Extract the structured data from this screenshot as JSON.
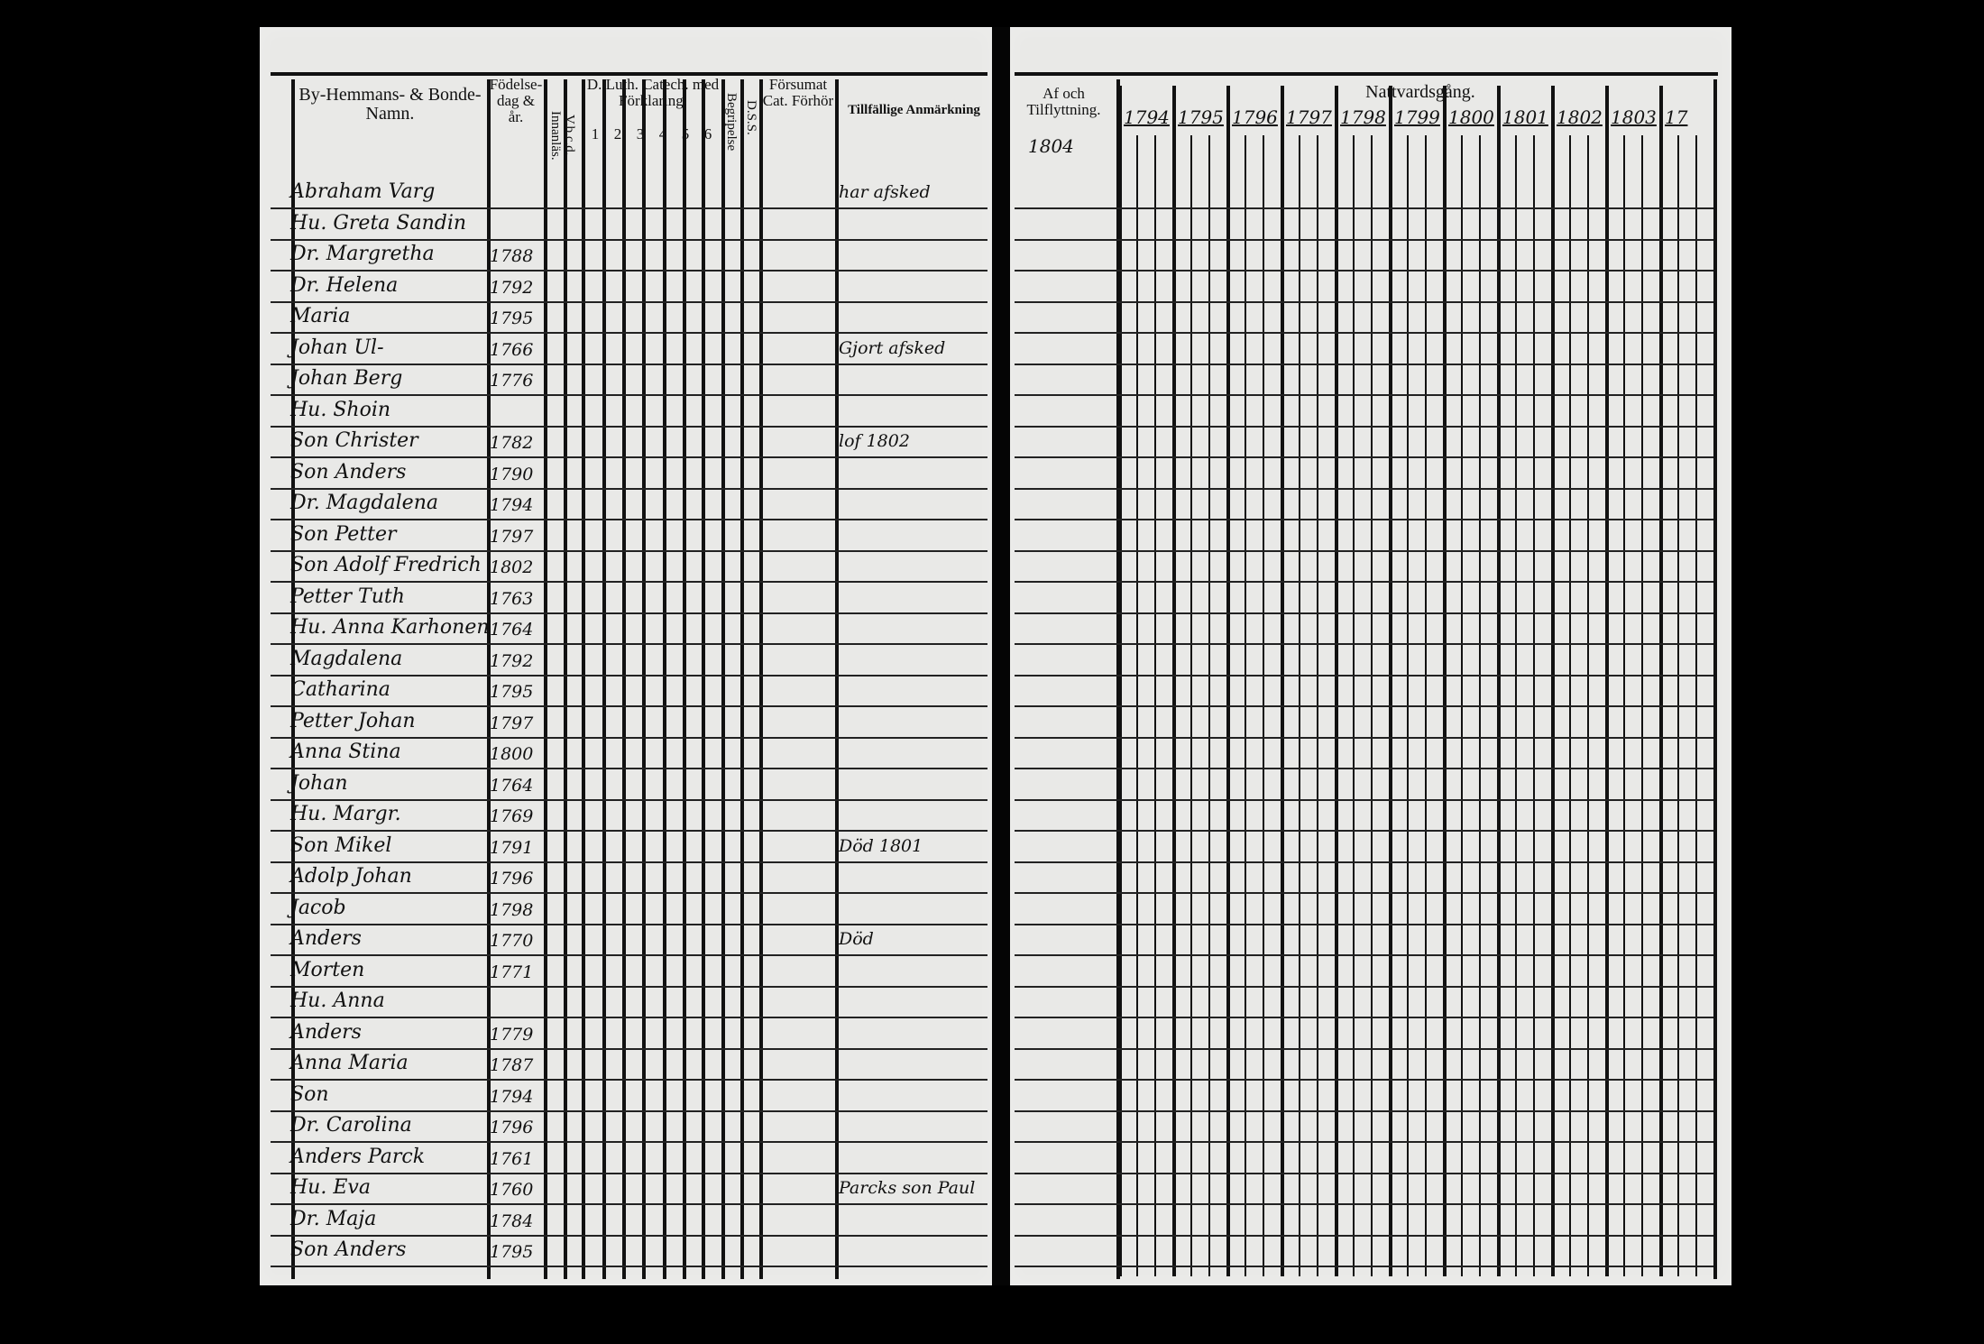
{
  "left_page": {
    "headers": {
      "names": "By-Hemmans- & Bonde-Namn.",
      "birth": "Födelse-dag & år.",
      "vbcd": "V.b.c.d. Innanläs.",
      "catechism": "D. Luth. Catech. med Förklaring.",
      "catechism_cols": [
        "1",
        "2",
        "3",
        "4",
        "5",
        "6"
      ],
      "begripelse": "Begripelse",
      "dss": "D.S.S.",
      "forsumat": "Försumat Cat. Förhör",
      "remarks": "Tillfällige Anmärkning"
    },
    "rows": [
      {
        "name": "Abraham Varg",
        "year": "",
        "remark": "har afsked"
      },
      {
        "name": "Hu. Greta Sandin",
        "year": "",
        "remark": ""
      },
      {
        "name": "Dr. Margretha",
        "year": "1788",
        "remark": ""
      },
      {
        "name": "Dr. Helena",
        "year": "1792",
        "remark": ""
      },
      {
        "name": "Maria",
        "year": "1795",
        "remark": ""
      },
      {
        "name": "Johan Ul-",
        "year": "1766",
        "remark": "Gjort afsked"
      },
      {
        "name": "Johan Berg",
        "year": "1776",
        "remark": ""
      },
      {
        "name": "Hu. Shoin",
        "year": "",
        "remark": ""
      },
      {
        "name": "Son Christer",
        "year": "1782",
        "remark": "lof 1802"
      },
      {
        "name": "Son Anders",
        "year": "1790",
        "remark": ""
      },
      {
        "name": "Dr. Magdalena",
        "year": "1794",
        "remark": ""
      },
      {
        "name": "Son Petter",
        "year": "1797",
        "remark": ""
      },
      {
        "name": "Son Adolf Fredrich",
        "year": "1802",
        "remark": ""
      },
      {
        "name": "Petter Tuth",
        "year": "1763",
        "remark": ""
      },
      {
        "name": "Hu. Anna Karhonen",
        "year": "1764",
        "remark": ""
      },
      {
        "name": "Magdalena",
        "year": "1792",
        "remark": ""
      },
      {
        "name": "Catharina",
        "year": "1795",
        "remark": ""
      },
      {
        "name": "Petter Johan",
        "year": "1797",
        "remark": ""
      },
      {
        "name": "Anna Stina",
        "year": "1800",
        "remark": ""
      },
      {
        "name": "Johan",
        "year": "1764",
        "remark": ""
      },
      {
        "name": "Hu. Margr.",
        "year": "1769",
        "remark": ""
      },
      {
        "name": "Son Mikel",
        "year": "1791",
        "remark": "Död 1801"
      },
      {
        "name": "Adolp Johan",
        "year": "1796",
        "remark": ""
      },
      {
        "name": "Jacob",
        "year": "1798",
        "remark": ""
      },
      {
        "name": "Anders",
        "year": "1770",
        "remark": "Död"
      },
      {
        "name": "Morten",
        "year": "1771",
        "remark": ""
      },
      {
        "name": "Hu. Anna",
        "year": "",
        "remark": ""
      },
      {
        "name": "Anders",
        "year": "1779",
        "remark": ""
      },
      {
        "name": "Anna Maria",
        "year": "1787",
        "remark": ""
      },
      {
        "name": "Son",
        "year": "1794",
        "remark": ""
      },
      {
        "name": "Dr. Carolina",
        "year": "1796",
        "remark": ""
      },
      {
        "name": "Anders Parck",
        "year": "1761",
        "remark": ""
      },
      {
        "name": "Hu. Eva",
        "year": "1760",
        "remark": "Parcks son Paul"
      },
      {
        "name": "Dr. Maja",
        "year": "1784",
        "remark": ""
      },
      {
        "name": "Son Anders",
        "year": "1795",
        "remark": ""
      }
    ]
  },
  "right_page": {
    "headers": {
      "moving": "Af och Tilflyttning.",
      "moving_year": "1804",
      "communion": "Nattvardsgång.",
      "years": [
        "1794",
        "1795",
        "1796",
        "1797",
        "1798",
        "1799",
        "1800",
        "1801",
        "1802",
        "1803",
        "17"
      ]
    }
  }
}
